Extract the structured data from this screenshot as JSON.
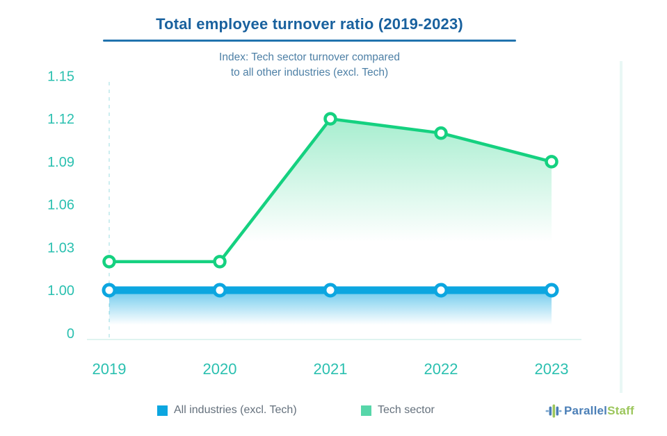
{
  "header": {
    "title": "Total employee turnover ratio (2019-2023)",
    "subtitle_line1": "Index: Tech sector turnover compared",
    "subtitle_line2": "to all other industries (excl. Tech)"
  },
  "chart_data": {
    "type": "line",
    "title": "Total employee turnover ratio (2019-2023)",
    "subtitle": "Index: Tech sector turnover compared to all other industries (excl. Tech)",
    "categories": [
      "2019",
      "2020",
      "2021",
      "2022",
      "2023"
    ],
    "series": [
      {
        "name": "All industries (excl. Tech)",
        "color": "#0ca6e0",
        "values": [
          1.0,
          1.0,
          1.0,
          1.0,
          1.0
        ]
      },
      {
        "name": "Tech sector",
        "color": "#15d180",
        "values": [
          1.02,
          1.02,
          1.12,
          1.11,
          1.09
        ]
      }
    ],
    "y_ticks": [
      1.15,
      1.12,
      1.09,
      1.06,
      1.03,
      1.0,
      0
    ],
    "y_axis_broken": true,
    "axis_label_color": "#2bc0b0",
    "grid": false,
    "legend_position": "bottom",
    "marker_style": "open-circle"
  },
  "legend": {
    "items": [
      {
        "label": "All industries (excl. Tech)",
        "color": "#0ca6e0"
      },
      {
        "label": "Tech sector",
        "color": "#57d6a9"
      }
    ]
  },
  "footer": {
    "brand_parallel": "Parallel",
    "brand_staff": "Staff"
  }
}
